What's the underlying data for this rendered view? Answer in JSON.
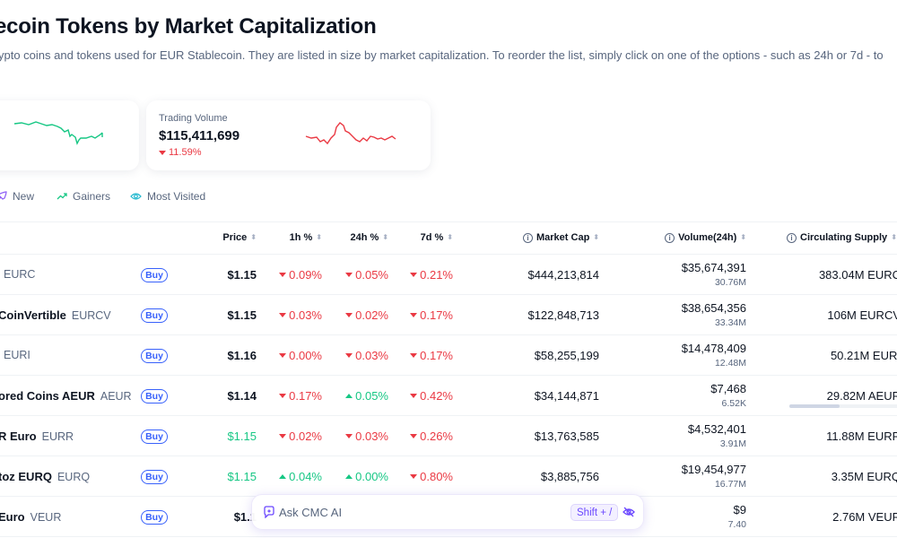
{
  "page": {
    "title": "ecoin Tokens by Market Capitalization",
    "subtitle": "ypto coins and tokens used for EUR Stablecoin. They are listed in size by market capitalization. To reorder the list, simply click on one of the options - such as 24h or 7d - to"
  },
  "cards": {
    "volume": {
      "label": "Trading Volume",
      "value": "$115,411,699",
      "change": "11.59%"
    }
  },
  "filters": {
    "new": "New",
    "gainers": "Gainers",
    "most_visited": "Most Visited"
  },
  "table": {
    "headers": {
      "price": "Price",
      "h1": "1h %",
      "h24": "24h %",
      "d7": "7d %",
      "market_cap": "Market Cap",
      "volume": "Volume(24h)",
      "supply": "Circulating Supply"
    },
    "buy_label": "Buy",
    "rows": [
      {
        "name": "",
        "symbol": "EURC",
        "price": "$1.15",
        "price_color": "#0d1421",
        "h1": "0.09%",
        "h1_dir": "down",
        "h24": "0.05%",
        "h24_dir": "down",
        "d7": "0.21%",
        "d7_dir": "down",
        "market_cap": "$444,213,814",
        "volume": "$35,674,391",
        "volume_sub": "30.76M",
        "supply": "383.04M EURC"
      },
      {
        "name": "CoinVertible",
        "symbol": "EURCV",
        "price": "$1.15",
        "price_color": "#0d1421",
        "h1": "0.03%",
        "h1_dir": "down",
        "h24": "0.02%",
        "h24_dir": "down",
        "d7": "0.17%",
        "d7_dir": "down",
        "market_cap": "$122,848,713",
        "volume": "$38,654,356",
        "volume_sub": "33.34M",
        "supply": "106M EURCV"
      },
      {
        "name": "",
        "symbol": "EURI",
        "price": "$1.16",
        "price_color": "#0d1421",
        "h1": "0.00%",
        "h1_dir": "down",
        "h24": "0.03%",
        "h24_dir": "down",
        "d7": "0.17%",
        "d7_dir": "down",
        "market_cap": "$58,255,199",
        "volume": "$14,478,409",
        "volume_sub": "12.48M",
        "supply": "50.21M EURI"
      },
      {
        "name": "ored Coins AEUR",
        "symbol": "AEUR",
        "price": "$1.14",
        "price_color": "#0d1421",
        "h1": "0.17%",
        "h1_dir": "down",
        "h24": "0.05%",
        "h24_dir": "up",
        "d7": "0.42%",
        "d7_dir": "down",
        "market_cap": "$34,144,871",
        "volume": "$7,468",
        "volume_sub": "6.52K",
        "supply": "29.82M AEUR",
        "supply_fraction": 0.45
      },
      {
        "name": "R Euro",
        "symbol": "EURR",
        "price": "$1.15",
        "price_color": "#16c784",
        "h1": "0.02%",
        "h1_dir": "down",
        "h24": "0.03%",
        "h24_dir": "down",
        "d7": "0.26%",
        "d7_dir": "down",
        "market_cap": "$13,763,585",
        "volume": "$4,532,401",
        "volume_sub": "3.91M",
        "supply": "11.88M EURR"
      },
      {
        "name": "toz EURQ",
        "symbol": "EURQ",
        "price": "$1.15",
        "price_color": "#16c784",
        "h1": "0.04%",
        "h1_dir": "up",
        "h24": "0.00%",
        "h24_dir": "up",
        "d7": "0.80%",
        "d7_dir": "down",
        "market_cap": "$3,885,756",
        "volume": "$19,454,977",
        "volume_sub": "16.77M",
        "supply": "3.35M EURQ"
      },
      {
        "name": "Euro",
        "symbol": "VEUR",
        "price": "$1.1",
        "price_color": "#0d1421",
        "h1": "",
        "h1_dir": "none",
        "h24": "",
        "h24_dir": "none",
        "d7": "",
        "d7_dir": "none",
        "market_cap": "",
        "volume": "$9",
        "volume_sub": "7.40",
        "supply": "2.76M VEUR"
      }
    ]
  },
  "ask": {
    "placeholder": "Ask CMC AI",
    "shortcut": "Shift + /"
  },
  "colors": {
    "up": "#16c784",
    "down": "#ea3943",
    "accent": "#3861fb",
    "ai": "#6b48ff"
  }
}
